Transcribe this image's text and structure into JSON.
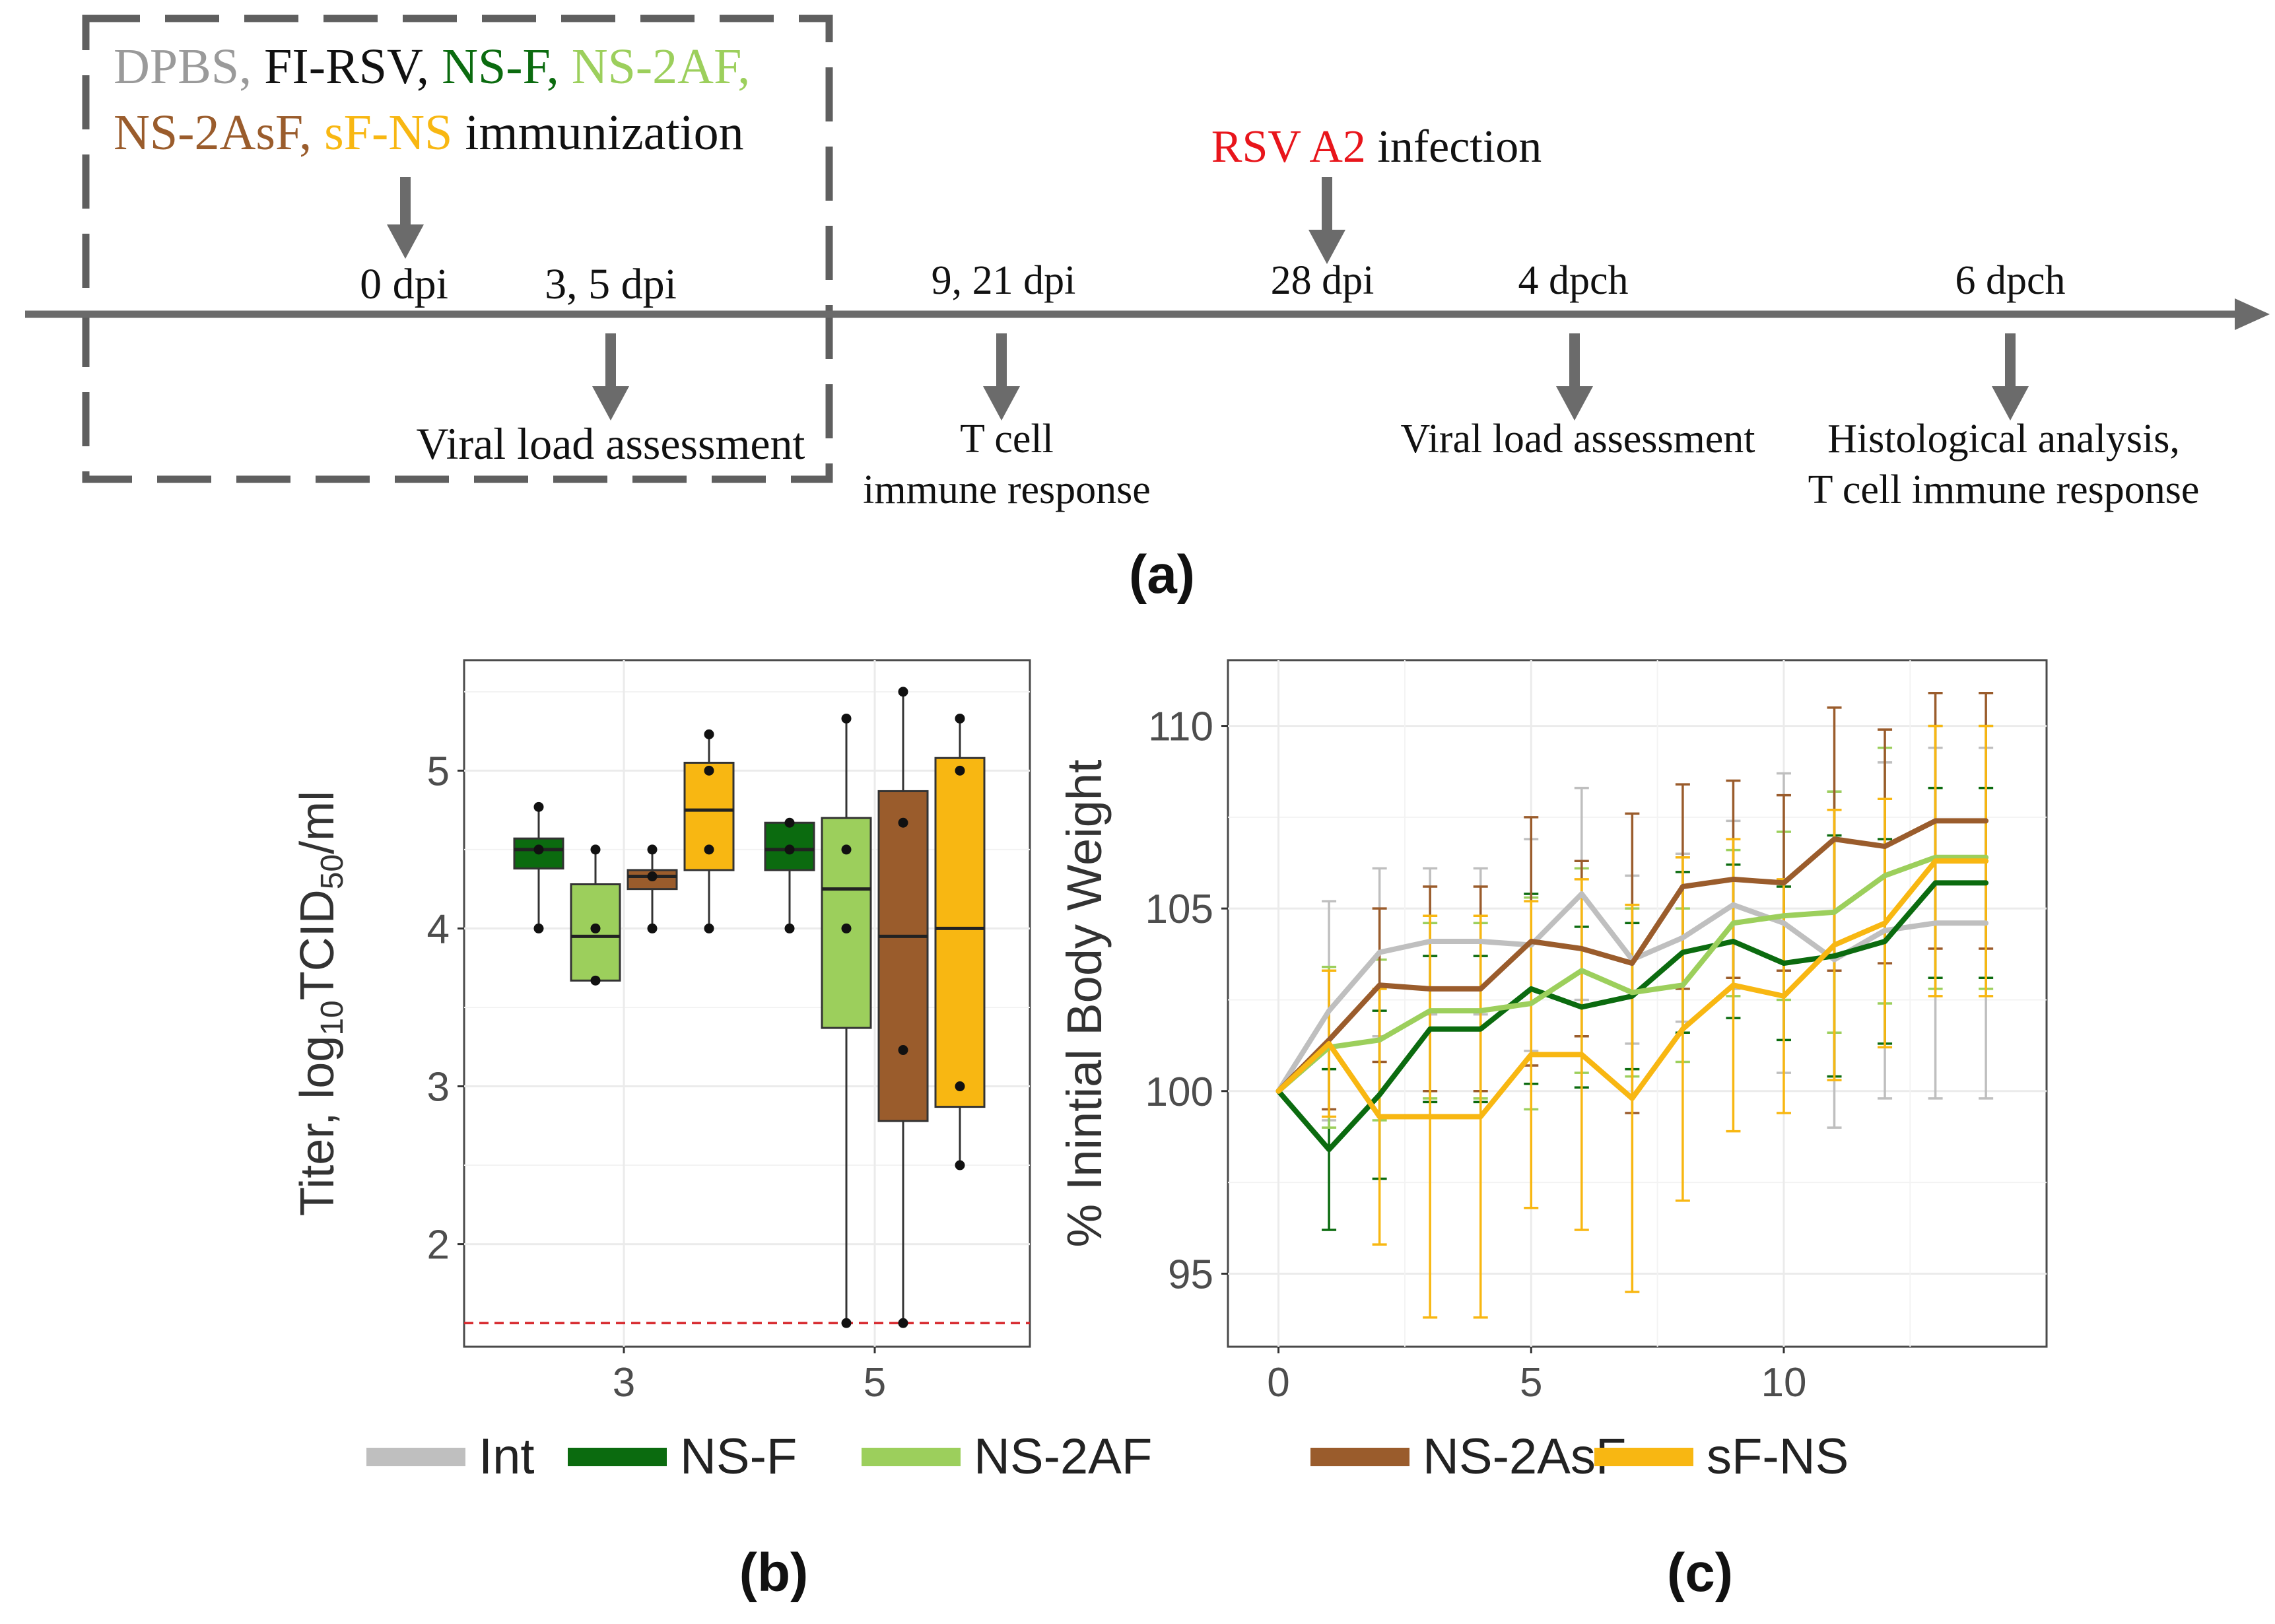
{
  "colors": {
    "Int": "#bfbfbf",
    "NS-F": "#0b6b0f",
    "NS-2AF": "#9ccf5c",
    "NS-2AsF": "#9a5c2c",
    "sF-NS": "#f8b712",
    "DPBS": "#9a9a9a",
    "FI-RSV": "#111111",
    "RSV_A2": "#e8151b",
    "axis_gray": "#666666"
  },
  "timeline": {
    "groups": [
      {
        "text": "DPBS,",
        "color_key": "DPBS"
      },
      {
        "text": "FI-RSV,",
        "color_key": "FI-RSV"
      },
      {
        "text": "NS-F,",
        "color_key": "NS-F"
      },
      {
        "text": "NS-2AF,",
        "color_key": "NS-2AF"
      },
      {
        "text": "NS-2AsF,",
        "color_key": "NS-2AsF"
      },
      {
        "text": "sF-NS",
        "color_key": "sF-NS"
      }
    ],
    "immunization_label": "immunization",
    "infection_strain": "RSV A2",
    "infection_label": "infection",
    "points_above": [
      "0 dpi",
      "3, 5 dpi",
      "9, 21 dpi",
      "28 dpi",
      "4 dpch",
      "6 dpch"
    ],
    "viral_load_1": "Viral load assessment",
    "tcell_1": [
      "T cell",
      "immune response"
    ],
    "viral_load_2": "Viral load assessment",
    "histo": [
      "Histological analysis,",
      "T cell immune response"
    ]
  },
  "panel_labels": {
    "a": "(a)",
    "b": "(b)",
    "c": "(c)"
  },
  "legend": [
    "Int",
    "NS-F",
    "NS-2AF",
    "NS-2AsF",
    "sF-NS"
  ],
  "chart_data": [
    {
      "id": "b",
      "type": "box",
      "title": "",
      "xlabel": "",
      "ylabel_main": "Titer, log",
      "ylabel_sub1": "10",
      "ylabel_mid": "TCID",
      "ylabel_sub2": "50",
      "ylabel_end": "/ml",
      "ylim": [
        1.35,
        5.7
      ],
      "yticks": [
        2,
        3,
        4,
        5
      ],
      "xticks": [
        "3",
        "5"
      ],
      "detection_limit": 1.5,
      "groups": [
        {
          "day": "3",
          "series": "NS-F",
          "q1": 4.38,
          "median": 4.5,
          "q3": 4.57,
          "whisker_low": 4.0,
          "whisker_high": 4.77,
          "points": [
            4.0,
            4.5,
            4.77
          ]
        },
        {
          "day": "3",
          "series": "NS-2AF",
          "q1": 3.67,
          "median": 3.95,
          "q3": 4.28,
          "whisker_low": 3.67,
          "whisker_high": 4.5,
          "points": [
            3.67,
            4.0,
            4.5
          ]
        },
        {
          "day": "3",
          "series": "NS-2AsF",
          "q1": 4.25,
          "median": 4.33,
          "q3": 4.37,
          "whisker_low": 4.0,
          "whisker_high": 4.5,
          "points": [
            4.0,
            4.33,
            4.5
          ]
        },
        {
          "day": "3",
          "series": "sF-NS",
          "q1": 4.37,
          "median": 4.75,
          "q3": 5.05,
          "whisker_low": 4.0,
          "whisker_high": 5.23,
          "points": [
            4.0,
            4.5,
            5.0,
            5.23
          ]
        },
        {
          "day": "5",
          "series": "NS-F",
          "q1": 4.37,
          "median": 4.5,
          "q3": 4.67,
          "whisker_low": 4.0,
          "whisker_high": 4.67,
          "points": [
            4.0,
            4.5,
            4.67
          ]
        },
        {
          "day": "5",
          "series": "NS-2AF",
          "q1": 3.37,
          "median": 4.25,
          "q3": 4.7,
          "whisker_low": 1.5,
          "whisker_high": 5.33,
          "points": [
            1.5,
            4.0,
            4.5,
            5.33
          ]
        },
        {
          "day": "5",
          "series": "NS-2AsF",
          "q1": 2.78,
          "median": 3.95,
          "q3": 4.87,
          "whisker_low": 1.5,
          "whisker_high": 5.5,
          "points": [
            1.5,
            3.23,
            4.67,
            5.5
          ]
        },
        {
          "day": "5",
          "series": "sF-NS",
          "q1": 2.87,
          "median": 4.0,
          "q3": 5.08,
          "whisker_low": 2.5,
          "whisker_high": 5.33,
          "points": [
            2.5,
            3.0,
            5.0,
            5.33
          ]
        }
      ]
    },
    {
      "id": "c",
      "type": "line",
      "title": "",
      "xlabel": "",
      "ylabel": "% Inintial Body Weight",
      "xlim": [
        -1,
        15.2
      ],
      "ylim": [
        93,
        111.8
      ],
      "xticks": [
        0,
        5,
        10
      ],
      "yticks": [
        95,
        100,
        105,
        110
      ],
      "x": [
        0,
        1,
        2,
        3,
        4,
        5,
        6,
        7,
        8,
        9,
        10,
        11,
        12,
        13,
        14
      ],
      "series": [
        {
          "name": "Int",
          "values": [
            100,
            102.2,
            103.8,
            104.1,
            104.1,
            104.0,
            105.4,
            103.6,
            104.2,
            105.1,
            104.6,
            103.6,
            104.4,
            104.6,
            104.6
          ],
          "errors": [
            0,
            3.0,
            2.3,
            2.0,
            2.0,
            2.9,
            2.9,
            2.3,
            2.3,
            2.3,
            4.1,
            4.6,
            4.6,
            4.8,
            4.8
          ]
        },
        {
          "name": "NS-F",
          "values": [
            100,
            98.4,
            99.9,
            101.7,
            101.7,
            102.8,
            102.3,
            102.6,
            103.8,
            104.1,
            103.5,
            103.7,
            104.1,
            105.7,
            105.7
          ],
          "errors": [
            0,
            2.2,
            2.3,
            2.0,
            2.0,
            2.6,
            2.2,
            2.0,
            2.2,
            2.1,
            2.1,
            3.3,
            2.8,
            2.6,
            2.6
          ]
        },
        {
          "name": "NS-2AF",
          "values": [
            100,
            101.2,
            101.4,
            102.2,
            102.2,
            102.4,
            103.3,
            102.7,
            102.9,
            104.6,
            104.8,
            104.9,
            105.9,
            106.4,
            106.4
          ],
          "errors": [
            0,
            2.2,
            2.2,
            2.4,
            2.4,
            2.9,
            2.8,
            2.3,
            2.1,
            2.0,
            2.3,
            3.3,
            3.5,
            3.6,
            3.6
          ]
        },
        {
          "name": "NS-2AsF",
          "values": [
            100,
            101.4,
            102.9,
            102.8,
            102.8,
            104.1,
            103.9,
            103.5,
            105.6,
            105.8,
            105.7,
            106.9,
            106.7,
            107.4,
            107.4
          ],
          "errors": [
            0,
            1.9,
            2.1,
            2.8,
            2.8,
            3.4,
            2.4,
            4.1,
            2.8,
            2.7,
            2.4,
            3.6,
            3.2,
            3.5,
            3.5
          ]
        },
        {
          "name": "sF-NS",
          "values": [
            100,
            101.3,
            99.3,
            99.3,
            99.3,
            101.0,
            101.0,
            99.8,
            101.7,
            102.9,
            102.6,
            104.0,
            104.6,
            106.3,
            106.3
          ],
          "errors": [
            0,
            2.0,
            3.5,
            5.5,
            5.5,
            4.2,
            4.8,
            5.3,
            4.7,
            4.0,
            3.2,
            3.7,
            3.4,
            3.7,
            3.7
          ]
        }
      ],
      "legend_position": "bottom"
    }
  ]
}
